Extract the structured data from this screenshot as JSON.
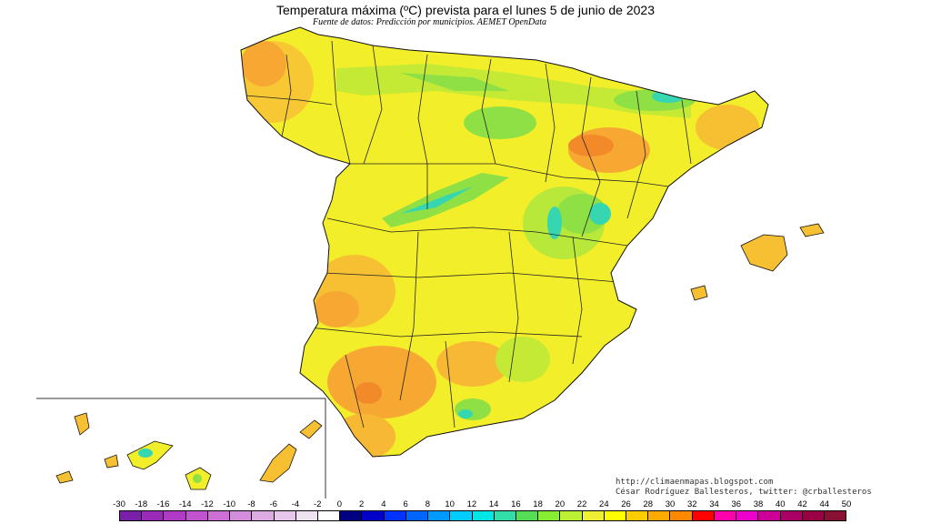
{
  "title": "Temperatura máxima (ºC) prevista para el lunes 5 de junio de 2023",
  "subtitle": "Fuente de datos: Predicción por municipios. AEMET OpenData",
  "credit_url": "http://climaenmapas.blogspot.com",
  "credit_author": "César Rodríguez Ballesteros, twitter: @crballesteros",
  "legend": {
    "labels": [
      "-30",
      "-18",
      "-16",
      "-14",
      "-12",
      "-10",
      "-8",
      "-6",
      "-4",
      "-2",
      "0",
      "2",
      "4",
      "6",
      "8",
      "10",
      "12",
      "14",
      "16",
      "18",
      "20",
      "22",
      "24",
      "26",
      "28",
      "30",
      "32",
      "34",
      "36",
      "38",
      "40",
      "42",
      "44",
      "50"
    ],
    "colors": [
      "#7a1fa8",
      "#9a2bb8",
      "#b03cc6",
      "#c255cf",
      "#cc70d6",
      "#d48cdc",
      "#ddaae2",
      "#e6c6ea",
      "#efe0f2",
      "#ffffff",
      "#000080",
      "#0000c8",
      "#0033ff",
      "#0066ff",
      "#0099ff",
      "#00ccff",
      "#00e5e5",
      "#33ddaa",
      "#55dd55",
      "#88ee33",
      "#bbf033",
      "#eef033",
      "#ffff00",
      "#ffcc00",
      "#ffaa00",
      "#ff8800",
      "#ff0000",
      "#ff00aa",
      "#ee00cc",
      "#cc0099",
      "#aa0066",
      "#990044",
      "#881133"
    ]
  },
  "colors": {
    "warm_orange": "#f7a833",
    "hot_orange": "#f28a2a",
    "yellow": "#f3ee2a",
    "yellow_green": "#d8ec2e",
    "green": "#8fe044",
    "cyan": "#35d6b0",
    "border": "#222222"
  }
}
